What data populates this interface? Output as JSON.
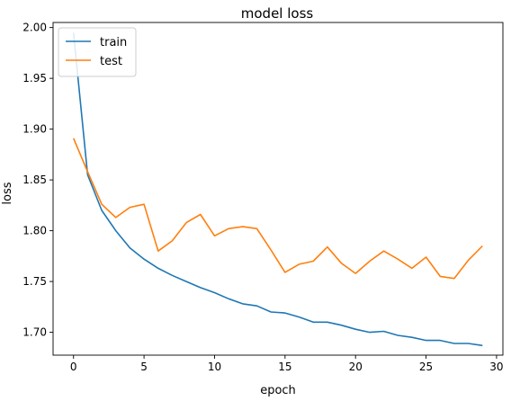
{
  "chart_data": {
    "type": "line",
    "title": "model loss",
    "xlabel": "epoch",
    "ylabel": "loss",
    "xlim": [
      -1.45,
      30.45
    ],
    "ylim": [
      1.6775,
      2.005
    ],
    "xticks": [
      0,
      5,
      10,
      15,
      20,
      25,
      30
    ],
    "xtick_labels": [
      "0",
      "5",
      "10",
      "15",
      "20",
      "25",
      "30"
    ],
    "yticks": [
      1.7,
      1.75,
      1.8,
      1.85,
      1.9,
      1.95,
      2.0
    ],
    "ytick_labels": [
      "1.70",
      "1.75",
      "1.80",
      "1.85",
      "1.90",
      "1.95",
      "2.00"
    ],
    "grid": false,
    "legend_position": "upper left",
    "x": [
      0,
      1,
      2,
      3,
      4,
      5,
      6,
      7,
      8,
      9,
      10,
      11,
      12,
      13,
      14,
      15,
      16,
      17,
      18,
      19,
      20,
      21,
      22,
      23,
      24,
      25,
      26,
      27,
      28,
      29
    ],
    "series": [
      {
        "name": "train",
        "color": "#1f77b4",
        "values": [
          1.995,
          1.855,
          1.82,
          1.8,
          1.783,
          1.772,
          1.763,
          1.756,
          1.75,
          1.744,
          1.739,
          1.733,
          1.728,
          1.726,
          1.72,
          1.719,
          1.715,
          1.71,
          1.71,
          1.707,
          1.703,
          1.7,
          1.701,
          1.697,
          1.695,
          1.692,
          1.692,
          1.689,
          1.689,
          1.687
        ]
      },
      {
        "name": "test",
        "color": "#ff7f0e",
        "values": [
          1.891,
          1.858,
          1.826,
          1.813,
          1.823,
          1.826,
          1.78,
          1.79,
          1.808,
          1.816,
          1.795,
          1.802,
          1.804,
          1.802,
          1.781,
          1.759,
          1.767,
          1.77,
          1.784,
          1.768,
          1.758,
          1.77,
          1.78,
          1.772,
          1.763,
          1.774,
          1.755,
          1.753,
          1.771,
          1.785
        ]
      }
    ]
  }
}
